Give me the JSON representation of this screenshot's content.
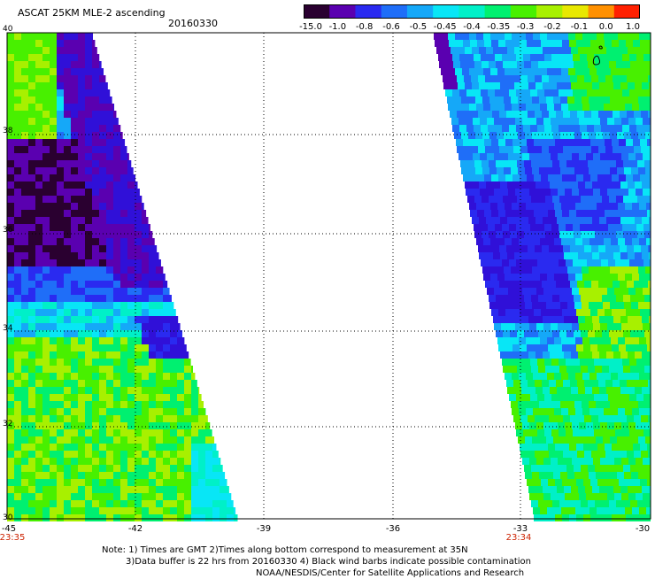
{
  "header": {
    "title": "ASCAT 25KM MLE-2 ascending",
    "date": "20160330"
  },
  "colorbar": {
    "labels": [
      "-15.0",
      "-1.0",
      "-0.8",
      "-0.6",
      "-0.5",
      "-0.45",
      "-0.4",
      "-0.35",
      "-0.3",
      "-0.2",
      "-0.1",
      "0.0",
      "1.0"
    ],
    "colors": [
      "#2a0030",
      "#5a00b0",
      "#2a2af0",
      "#1f6ef8",
      "#15a8f8",
      "#08e6f6",
      "#00f0c8",
      "#00f070",
      "#48f000",
      "#a8f000",
      "#e8e800",
      "#ff9000",
      "#ff2000"
    ]
  },
  "axes": {
    "lat_labels": [
      "40",
      "38",
      "36",
      "34",
      "32",
      "30"
    ],
    "lon_labels": [
      "-45",
      "-42",
      "-39",
      "-36",
      "-33",
      "-30"
    ]
  },
  "times": {
    "left": "23:35",
    "right": "23:34"
  },
  "swaths": {
    "left": {
      "lon_min": -45,
      "lat_min": 30,
      "lat_max": 40
    },
    "right": {
      "lon_max": -30,
      "lat_min": 30,
      "lat_max": 40
    }
  },
  "note": {
    "line1": "Note: 1) Times are GMT 2)Times along bottom correspond to measurement at 35N",
    "line2": "3)Data buffer is 22 hrs from 20160330 4) Black wind barbs indicate possible contamination",
    "line3": "NOAA/NESDIS/Center for Satellite Applications and Research"
  }
}
